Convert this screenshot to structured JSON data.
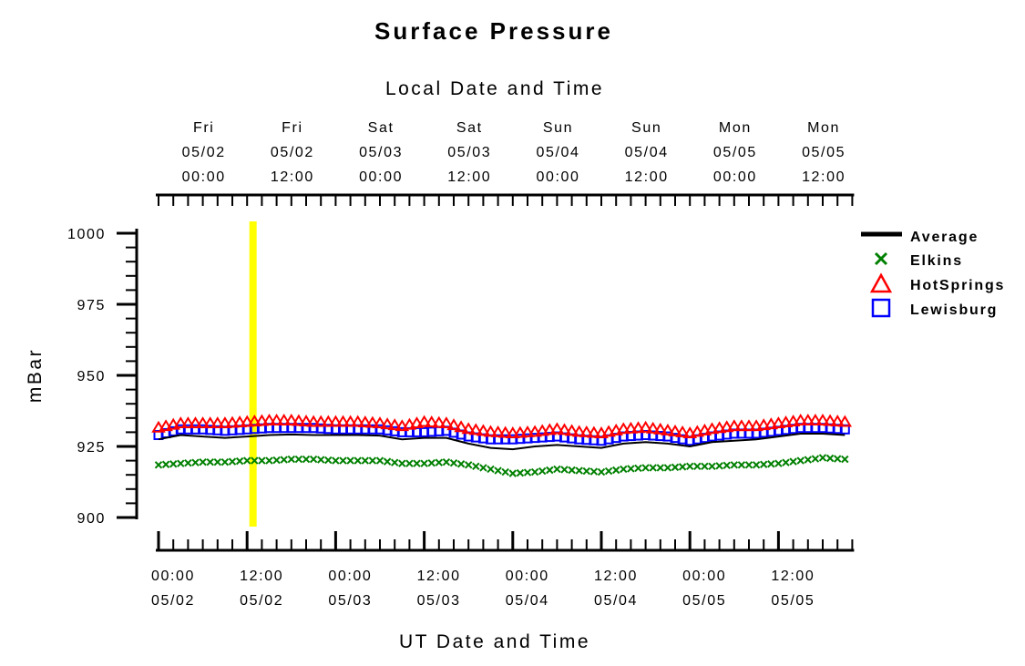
{
  "chart_data": {
    "type": "line",
    "title": "Surface Pressure",
    "top_axis_title": "Local Date and Time",
    "xlabel": "UT Date and Time",
    "ylabel": "mBar",
    "ylim": [
      900,
      1000
    ],
    "y_ticks": [
      "900",
      "925",
      "950",
      "975",
      "1000"
    ],
    "x_range_hours": [
      0,
      94
    ],
    "bottom_ticks": [
      {
        "t": 0,
        "time": "00:00",
        "date": "05/02"
      },
      {
        "t": 12,
        "time": "12:00",
        "date": "05/02"
      },
      {
        "t": 24,
        "time": "00:00",
        "date": "05/03"
      },
      {
        "t": 36,
        "time": "12:00",
        "date": "05/03"
      },
      {
        "t": 48,
        "time": "00:00",
        "date": "05/04"
      },
      {
        "t": 60,
        "time": "12:00",
        "date": "05/04"
      },
      {
        "t": 72,
        "time": "00:00",
        "date": "05/05"
      },
      {
        "t": 84,
        "time": "12:00",
        "date": "05/05"
      }
    ],
    "top_ticks": [
      {
        "t": 7,
        "day": "Fri",
        "date": "05/02",
        "time": "00:00"
      },
      {
        "t": 19,
        "day": "Fri",
        "date": "05/02",
        "time": "12:00"
      },
      {
        "t": 31,
        "day": "Sat",
        "date": "05/03",
        "time": "00:00"
      },
      {
        "t": 43,
        "day": "Sat",
        "date": "05/03",
        "time": "12:00"
      },
      {
        "t": 55,
        "day": "Sun",
        "date": "05/04",
        "time": "00:00"
      },
      {
        "t": 67,
        "day": "Sun",
        "date": "05/04",
        "time": "12:00"
      },
      {
        "t": 79,
        "day": "Mon",
        "date": "05/05",
        "time": "00:00"
      },
      {
        "t": 91,
        "day": "Mon",
        "date": "05/05",
        "time": "12:00"
      }
    ],
    "highlight_t": 12.8,
    "highlight_color": "#ffff00",
    "legend_position": "right",
    "grid": false,
    "series": [
      {
        "name": "Average",
        "marker": "line",
        "color": "#000000",
        "points": [
          [
            0,
            927.5
          ],
          [
            3,
            929
          ],
          [
            6,
            928.5
          ],
          [
            9,
            928
          ],
          [
            12,
            928.5
          ],
          [
            15,
            929
          ],
          [
            18,
            929.2
          ],
          [
            21,
            929
          ],
          [
            24,
            929
          ],
          [
            27,
            929
          ],
          [
            30,
            928.8
          ],
          [
            33,
            927.5
          ],
          [
            36,
            928
          ],
          [
            39,
            928
          ],
          [
            42,
            926
          ],
          [
            45,
            924.5
          ],
          [
            48,
            924
          ],
          [
            51,
            925
          ],
          [
            54,
            925.5
          ],
          [
            57,
            925
          ],
          [
            60,
            924.5
          ],
          [
            63,
            926
          ],
          [
            66,
            926.5
          ],
          [
            69,
            926
          ],
          [
            72,
            925
          ],
          [
            75,
            926.5
          ],
          [
            78,
            927
          ],
          [
            81,
            927.5
          ],
          [
            84,
            928.5
          ],
          [
            87,
            929.5
          ],
          [
            90,
            929.5
          ],
          [
            93,
            929
          ]
        ]
      },
      {
        "name": "Elkins",
        "marker": "x",
        "color": "#008000",
        "points": [
          [
            0,
            918.5
          ],
          [
            3,
            919
          ],
          [
            6,
            919.5
          ],
          [
            9,
            919.5
          ],
          [
            12,
            920
          ],
          [
            15,
            920
          ],
          [
            18,
            920.5
          ],
          [
            21,
            920.5
          ],
          [
            24,
            920
          ],
          [
            27,
            920
          ],
          [
            30,
            920
          ],
          [
            33,
            919
          ],
          [
            36,
            919
          ],
          [
            39,
            919.5
          ],
          [
            42,
            918.5
          ],
          [
            45,
            917
          ],
          [
            48,
            915.5
          ],
          [
            51,
            916
          ],
          [
            54,
            917
          ],
          [
            57,
            916.5
          ],
          [
            60,
            916
          ],
          [
            63,
            917
          ],
          [
            66,
            917.5
          ],
          [
            69,
            917.5
          ],
          [
            72,
            918
          ],
          [
            75,
            918
          ],
          [
            78,
            918.5
          ],
          [
            81,
            918.5
          ],
          [
            84,
            919
          ],
          [
            87,
            920
          ],
          [
            90,
            921
          ],
          [
            93,
            920.5
          ]
        ]
      },
      {
        "name": "HotSprings",
        "marker": "triangle",
        "color": "#ff0000",
        "points": [
          [
            0,
            931.5
          ],
          [
            3,
            933
          ],
          [
            6,
            933
          ],
          [
            9,
            933
          ],
          [
            12,
            933.5
          ],
          [
            15,
            934
          ],
          [
            18,
            934
          ],
          [
            21,
            933.5
          ],
          [
            24,
            933.5
          ],
          [
            27,
            933.5
          ],
          [
            30,
            933
          ],
          [
            33,
            932
          ],
          [
            36,
            933.5
          ],
          [
            39,
            933
          ],
          [
            42,
            931
          ],
          [
            45,
            930
          ],
          [
            48,
            929.5
          ],
          [
            51,
            930
          ],
          [
            54,
            931
          ],
          [
            57,
            930
          ],
          [
            60,
            929.5
          ],
          [
            63,
            931
          ],
          [
            66,
            931.5
          ],
          [
            69,
            930.5
          ],
          [
            72,
            929.5
          ],
          [
            75,
            931
          ],
          [
            78,
            932
          ],
          [
            81,
            932
          ],
          [
            84,
            933
          ],
          [
            87,
            934
          ],
          [
            90,
            934
          ],
          [
            93,
            933.5
          ]
        ]
      },
      {
        "name": "Lewisburg",
        "marker": "square",
        "color": "#0000ff",
        "points": [
          [
            0,
            929
          ],
          [
            3,
            931
          ],
          [
            6,
            931
          ],
          [
            9,
            930.5
          ],
          [
            12,
            931
          ],
          [
            15,
            931.5
          ],
          [
            18,
            931.5
          ],
          [
            21,
            931.5
          ],
          [
            24,
            931
          ],
          [
            27,
            931
          ],
          [
            30,
            931
          ],
          [
            33,
            930
          ],
          [
            36,
            930
          ],
          [
            39,
            930.5
          ],
          [
            42,
            928.5
          ],
          [
            45,
            927.5
          ],
          [
            48,
            927.5
          ],
          [
            51,
            928
          ],
          [
            54,
            928.5
          ],
          [
            57,
            927.5
          ],
          [
            60,
            927
          ],
          [
            63,
            928.5
          ],
          [
            66,
            929
          ],
          [
            69,
            928.5
          ],
          [
            72,
            927
          ],
          [
            75,
            928.5
          ],
          [
            78,
            929.5
          ],
          [
            81,
            929.5
          ],
          [
            84,
            930.5
          ],
          [
            87,
            931.5
          ],
          [
            90,
            931.5
          ],
          [
            93,
            931
          ]
        ]
      }
    ]
  }
}
